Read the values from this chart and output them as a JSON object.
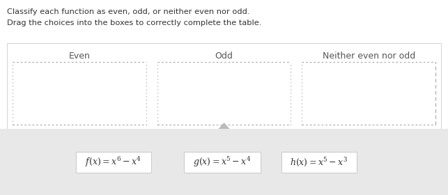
{
  "title_line1": "Classify each function as even, odd, or neither even nor odd.",
  "title_line2": "Drag the choices into the boxes to correctly complete the table.",
  "col_headers": [
    "Even",
    "Odd",
    "Neither even nor odd"
  ],
  "white_bg": "#ffffff",
  "bottom_strip_bg": "#e8e8e8",
  "table_bg": "#ffffff",
  "table_border": "#cccccc",
  "dash_box_color": "#bbbbbb",
  "math_texts": [
    "$f(x) = x^6 - x^4$",
    "$g(x) = x^5 - x^4$",
    "$h(x) = x^5 - x^3$"
  ],
  "header_fontsize": 9,
  "text_fontsize": 8.5,
  "func_fontsize": 9,
  "figw": 6.43,
  "figh": 2.8,
  "dpi": 100
}
